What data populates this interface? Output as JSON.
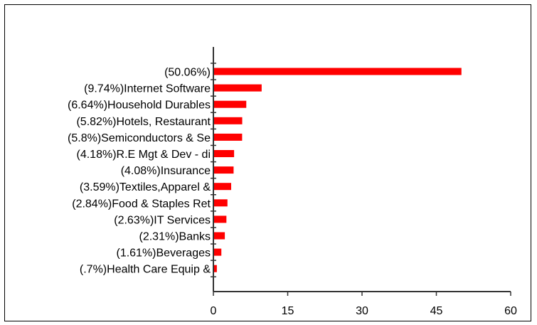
{
  "chart_data": {
    "type": "bar",
    "orientation": "horizontal",
    "categories": [
      "(50.06%)",
      "(9.74%)Internet Software",
      "(6.64%)Household Durables",
      "(5.82%)Hotels, Restaurant",
      "(5.8%)Semiconductors & Se",
      "(4.18%)R.E Mgt & Dev - di",
      "(4.08%)Insurance",
      "(3.59%)Textiles,Apparel &",
      "(2.84%)Food & Staples Ret",
      "(2.63%)IT Services",
      "(2.31%)Banks",
      "(1.61%)Beverages",
      "(.7%)Health Care Equip &"
    ],
    "values": [
      50.06,
      9.74,
      6.64,
      5.82,
      5.8,
      4.18,
      4.08,
      3.59,
      2.84,
      2.63,
      2.31,
      1.61,
      0.7
    ],
    "x_ticks": [
      "0",
      "15",
      "30",
      "45",
      "60"
    ],
    "xlim": [
      0,
      60
    ],
    "bar_color": "#ff0000",
    "grid": false,
    "title": "",
    "xlabel": "",
    "ylabel": ""
  }
}
